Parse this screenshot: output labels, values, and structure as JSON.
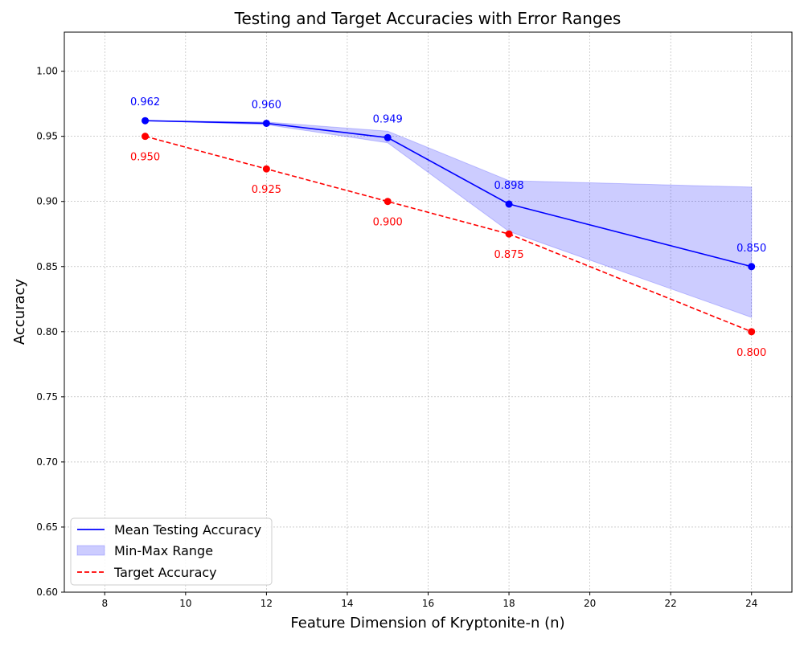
{
  "chart_data": {
    "type": "line",
    "title": "Testing and Target Accuracies with Error Ranges",
    "xlabel": "Feature Dimension of Kryptonite-n (n)",
    "ylabel": "Accuracy",
    "xlim": [
      7,
      25
    ],
    "ylim": [
      0.6,
      1.03
    ],
    "xticks": [
      8,
      10,
      12,
      14,
      16,
      18,
      20,
      22,
      24
    ],
    "yticks": [
      0.6,
      0.65,
      0.7,
      0.75,
      0.8,
      0.85,
      0.9,
      0.95,
      1.0
    ],
    "grid": true,
    "legend_position": "lower-left",
    "x": [
      9,
      12,
      15,
      18,
      24
    ],
    "series": [
      {
        "name": "Mean Testing Accuracy",
        "style": "solid",
        "color": "#0000ff",
        "values": [
          0.962,
          0.96,
          0.949,
          0.898,
          0.85
        ],
        "labels": [
          "0.962",
          "0.960",
          "0.949",
          "0.898",
          "0.850"
        ],
        "label_position": "above"
      },
      {
        "name": "Min-Max Range",
        "style": "band",
        "color": "#0000ff",
        "min": [
          0.962,
          0.959,
          0.945,
          0.877,
          0.811
        ],
        "max": [
          0.962,
          0.961,
          0.954,
          0.916,
          0.911
        ]
      },
      {
        "name": "Target Accuracy",
        "style": "dashed",
        "color": "#ff0000",
        "values": [
          0.95,
          0.925,
          0.9,
          0.875,
          0.8
        ],
        "labels": [
          "0.950",
          "0.925",
          "0.900",
          "0.875",
          "0.800"
        ],
        "label_position": "below"
      }
    ]
  }
}
